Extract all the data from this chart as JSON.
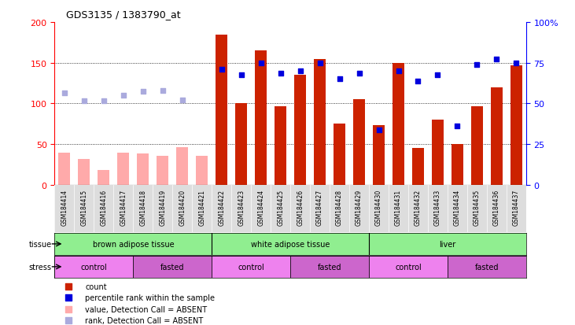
{
  "title": "GDS3135 / 1383790_at",
  "samples": [
    "GSM184414",
    "GSM184415",
    "GSM184416",
    "GSM184417",
    "GSM184418",
    "GSM184419",
    "GSM184420",
    "GSM184421",
    "GSM184422",
    "GSM184423",
    "GSM184424",
    "GSM184425",
    "GSM184426",
    "GSM184427",
    "GSM184428",
    "GSM184429",
    "GSM184430",
    "GSM184431",
    "GSM184432",
    "GSM184433",
    "GSM184434",
    "GSM184435",
    "GSM184436",
    "GSM184437"
  ],
  "count_values": [
    null,
    null,
    null,
    null,
    null,
    null,
    null,
    null,
    185,
    100,
    165,
    97,
    135,
    155,
    75,
    105,
    73,
    150,
    45,
    80,
    50,
    97,
    120,
    147
  ],
  "absent_count_values": [
    40,
    32,
    18,
    40,
    39,
    36,
    46,
    36,
    null,
    null,
    null,
    null,
    null,
    null,
    null,
    null,
    null,
    null,
    null,
    null,
    null,
    null,
    null,
    null
  ],
  "rank_values": [
    null,
    null,
    null,
    null,
    null,
    null,
    null,
    null,
    142,
    135,
    150,
    137,
    140,
    150,
    130,
    137,
    68,
    140,
    128,
    135,
    72,
    148,
    155,
    150
  ],
  "absent_rank_values": [
    113,
    103,
    103,
    110,
    115,
    116,
    104,
    null,
    null,
    null,
    null,
    null,
    null,
    null,
    null,
    null,
    null,
    null,
    null,
    null,
    null,
    null,
    null,
    null
  ],
  "tissue_groups": [
    {
      "label": "brown adipose tissue",
      "start": 0,
      "end": 8
    },
    {
      "label": "white adipose tissue",
      "start": 8,
      "end": 16
    },
    {
      "label": "liver",
      "start": 16,
      "end": 24
    }
  ],
  "stress_groups": [
    {
      "label": "control",
      "start": 0,
      "end": 4
    },
    {
      "label": "fasted",
      "start": 4,
      "end": 8
    },
    {
      "label": "control",
      "start": 8,
      "end": 12
    },
    {
      "label": "fasted",
      "start": 12,
      "end": 16
    },
    {
      "label": "control",
      "start": 16,
      "end": 20
    },
    {
      "label": "fasted",
      "start": 20,
      "end": 24
    }
  ],
  "bar_color_present": "#cc2200",
  "bar_color_absent": "#ffaaaa",
  "rank_color_present": "#0000dd",
  "rank_color_absent": "#aaaadd",
  "tissue_color": "#90EE90",
  "stress_color_even": "#EE82EE",
  "stress_color_odd": "#CC66CC",
  "ylim_left": [
    0,
    200
  ],
  "ylim_right": [
    0,
    100
  ],
  "yticks_left": [
    0,
    50,
    100,
    150,
    200
  ],
  "yticks_right": [
    0,
    25,
    50,
    75,
    100
  ],
  "yticklabels_right": [
    "0",
    "25",
    "50",
    "75",
    "100%"
  ]
}
